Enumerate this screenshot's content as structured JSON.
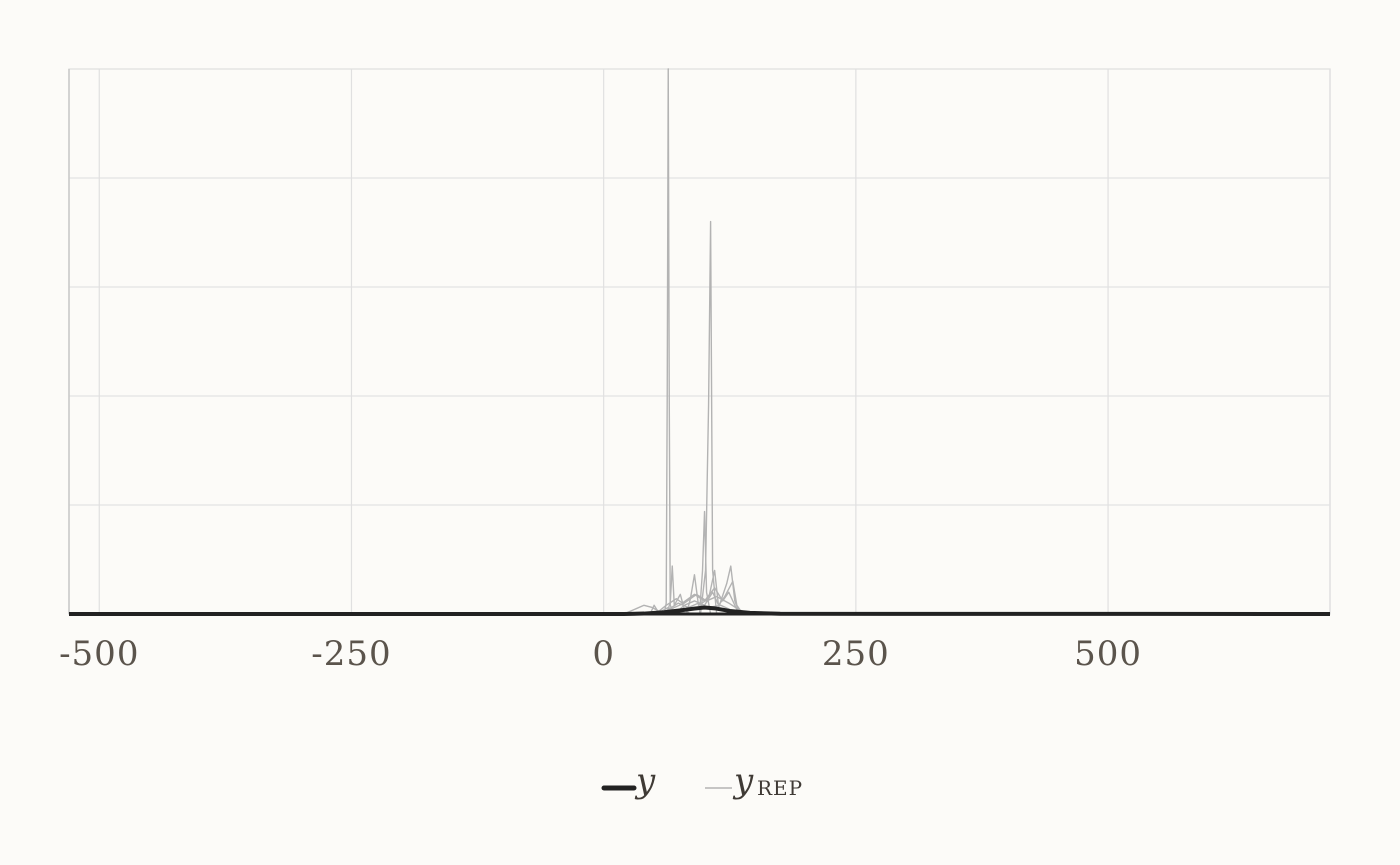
{
  "chart_data": {
    "type": "line",
    "title": "",
    "xlabel": "",
    "ylabel": "",
    "xlim": [
      -530,
      720
    ],
    "ylim": [
      0,
      0.25
    ],
    "x_ticks": [
      -500,
      -250,
      0,
      250,
      500
    ],
    "x_tick_labels": [
      "-500",
      "-250",
      "0",
      "250",
      "500"
    ],
    "y_gridlines": [
      0,
      0.05,
      0.1,
      0.15,
      0.2,
      0.25
    ],
    "grid": true,
    "legend_position": "bottom-center",
    "series": [
      {
        "name": "y",
        "name_sub": "",
        "color": "#222222",
        "role": "observed",
        "points": [
          [
            -530,
            0
          ],
          [
            20,
            0
          ],
          [
            40,
            0.0002
          ],
          [
            60,
            0.0008
          ],
          [
            75,
            0.0016
          ],
          [
            90,
            0.0025
          ],
          [
            100,
            0.003
          ],
          [
            110,
            0.0026
          ],
          [
            125,
            0.0014
          ],
          [
            145,
            0.0005
          ],
          [
            175,
            0.0001
          ],
          [
            720,
            0
          ]
        ]
      },
      {
        "name": "y",
        "name_sub": "REP",
        "color": "#b3b3b3",
        "role": "replicates",
        "replicates": [
          [
            [
              -530,
              0
            ],
            [
              60,
              0
            ],
            [
              62,
              0.005
            ],
            [
              63,
              0.1
            ],
            [
              64,
              0.25
            ],
            [
              65,
              0.1
            ],
            [
              66,
              0.004
            ],
            [
              70,
              0
            ],
            [
              720,
              0
            ]
          ],
          [
            [
              -530,
              0
            ],
            [
              96,
              0
            ],
            [
              101,
              0.02
            ],
            [
              104,
              0.096
            ],
            [
              106,
              0.18
            ],
            [
              108,
              0.02
            ],
            [
              112,
              0
            ],
            [
              720,
              0
            ]
          ],
          [
            [
              -530,
              0
            ],
            [
              95,
              0
            ],
            [
              98,
              0.02
            ],
            [
              100,
              0.047
            ],
            [
              102,
              0.01
            ],
            [
              106,
              0
            ],
            [
              720,
              0
            ]
          ],
          [
            [
              -530,
              0
            ],
            [
              62,
              0
            ],
            [
              66,
              0.005
            ],
            [
              68,
              0.022
            ],
            [
              70,
              0.004
            ],
            [
              76,
              0.009
            ],
            [
              80,
              0.002
            ],
            [
              86,
              0
            ],
            [
              720,
              0
            ]
          ],
          [
            [
              -530,
              0
            ],
            [
              82,
              0
            ],
            [
              86,
              0.007
            ],
            [
              90,
              0.018
            ],
            [
              94,
              0.004
            ],
            [
              104,
              0.007
            ],
            [
              110,
              0.02
            ],
            [
              114,
              0.003
            ],
            [
              122,
              0.014
            ],
            [
              126,
              0.022
            ],
            [
              130,
              0.006
            ],
            [
              135,
              0
            ],
            [
              720,
              0
            ]
          ],
          [
            [
              -530,
              0
            ],
            [
              20,
              0
            ],
            [
              30,
              0.002
            ],
            [
              40,
              0.004
            ],
            [
              48,
              0.003
            ],
            [
              56,
              0.001
            ],
            [
              64,
              0.003
            ],
            [
              72,
              0.001
            ],
            [
              90,
              0
            ],
            [
              720,
              0
            ]
          ],
          [
            [
              -530,
              0
            ],
            [
              46,
              0
            ],
            [
              50,
              0.004
            ],
            [
              54,
              0.001
            ],
            [
              62,
              0.004
            ],
            [
              72,
              0.007
            ],
            [
              78,
              0.005
            ],
            [
              90,
              0.009
            ],
            [
              100,
              0.006
            ],
            [
              110,
              0.012
            ],
            [
              118,
              0.006
            ],
            [
              124,
              0.01
            ],
            [
              132,
              0.002
            ],
            [
              140,
              0
            ],
            [
              720,
              0
            ]
          ],
          [
            [
              -530,
              0
            ],
            [
              60,
              0
            ],
            [
              70,
              0.003
            ],
            [
              80,
              0.005
            ],
            [
              92,
              0.009
            ],
            [
              102,
              0.006
            ],
            [
              112,
              0.008
            ],
            [
              124,
              0.005
            ],
            [
              134,
              0.002
            ],
            [
              145,
              0
            ],
            [
              720,
              0
            ]
          ],
          [
            [
              -530,
              0
            ],
            [
              70,
              0
            ],
            [
              80,
              0.004
            ],
            [
              90,
              0.006
            ],
            [
              100,
              0.004
            ],
            [
              108,
              0.01
            ],
            [
              114,
              0.004
            ],
            [
              120,
              0.008
            ],
            [
              128,
              0.015
            ],
            [
              132,
              0.004
            ],
            [
              138,
              0
            ],
            [
              720,
              0
            ]
          ],
          [
            [
              -530,
              0
            ],
            [
              56,
              0
            ],
            [
              64,
              0.002
            ],
            [
              74,
              0.005
            ],
            [
              84,
              0.003
            ],
            [
              94,
              0.005
            ],
            [
              104,
              0.003
            ],
            [
              116,
              0.004
            ],
            [
              130,
              0.001
            ],
            [
              140,
              0
            ],
            [
              720,
              0
            ]
          ]
        ]
      }
    ]
  }
}
